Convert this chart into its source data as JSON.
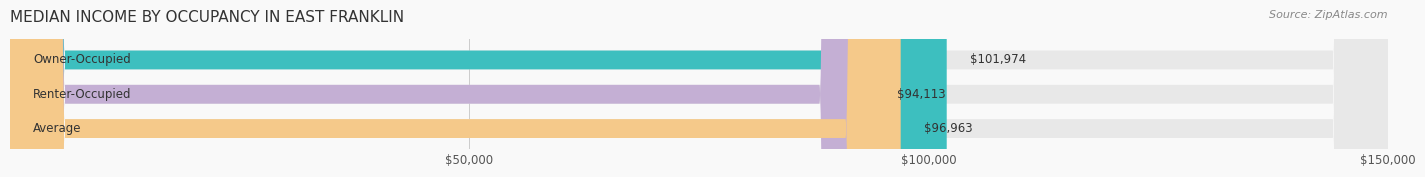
{
  "title": "MEDIAN INCOME BY OCCUPANCY IN EAST FRANKLIN",
  "source": "Source: ZipAtlas.com",
  "categories": [
    "Owner-Occupied",
    "Renter-Occupied",
    "Average"
  ],
  "values": [
    101974,
    94113,
    96963
  ],
  "bar_colors": [
    "#3dbfbf",
    "#c4afd4",
    "#f5c98a"
  ],
  "bar_bg_color": "#eeeeee",
  "value_labels": [
    "$101,974",
    "$94,113",
    "$96,963"
  ],
  "xlim": [
    0,
    150000
  ],
  "xtick_values": [
    50000,
    100000,
    150000
  ],
  "xtick_labels": [
    "$50,000",
    "$100,000",
    "$150,000"
  ],
  "title_fontsize": 11,
  "label_fontsize": 8.5,
  "source_fontsize": 8,
  "bar_height": 0.55,
  "background_color": "#f9f9f9",
  "bar_bg_alpha": 0.5
}
